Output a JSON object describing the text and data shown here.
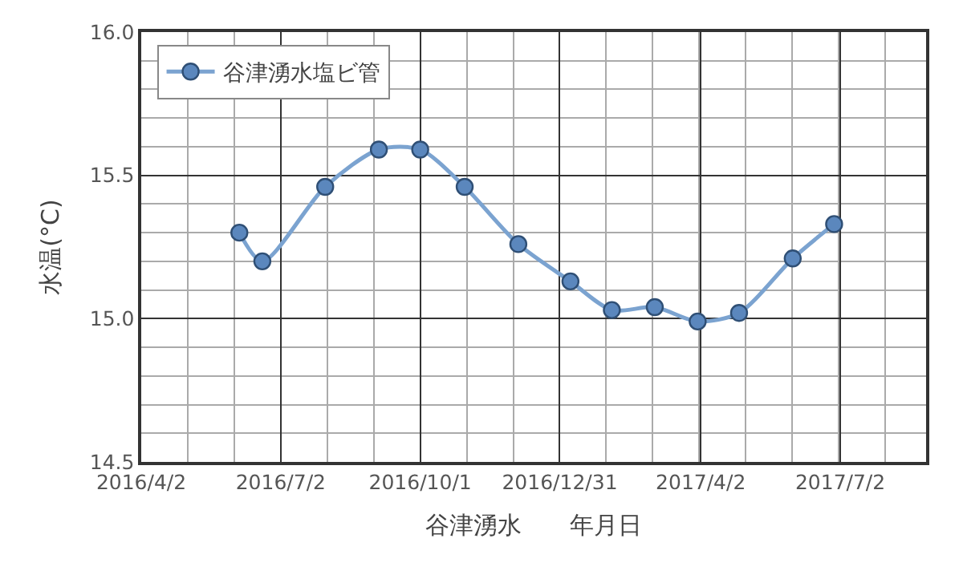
{
  "chart_data": {
    "type": "line",
    "ylabel": "水温(°C)",
    "xlabel": "谷津湧水　　年月日",
    "x": [
      "2016-06-05",
      "2016-06-20",
      "2016-07-31",
      "2016-09-04",
      "2016-10-01",
      "2016-10-30",
      "2016-12-04",
      "2017-01-07",
      "2017-02-03",
      "2017-03-03",
      "2017-03-31",
      "2017-04-27",
      "2017-06-01",
      "2017-06-28"
    ],
    "series": [
      {
        "name": "谷津湧水塩ビ管",
        "color": "#5b87bd",
        "values": [
          15.3,
          15.2,
          15.46,
          15.59,
          15.59,
          15.46,
          15.26,
          15.13,
          15.03,
          15.04,
          14.99,
          15.02,
          15.21,
          15.33
        ]
      }
    ],
    "xlim": [
      "2016-04-02",
      "2017-08-27"
    ],
    "xticks": [
      {
        "value": "2016-04-02",
        "label": "2016/4/2"
      },
      {
        "value": "2016-07-02",
        "label": "2016/7/2"
      },
      {
        "value": "2016-10-01",
        "label": "2016/10/1"
      },
      {
        "value": "2016-12-31",
        "label": "2016/12/31"
      },
      {
        "value": "2017-04-02",
        "label": "2017/4/2"
      },
      {
        "value": "2017-07-02",
        "label": "2017/7/2"
      }
    ],
    "ylim": [
      14.5,
      16.0
    ],
    "yticks": [
      14.5,
      {
        "value": 15,
        "label": "15.0"
      },
      15.5,
      {
        "value": 16,
        "label": "16.0"
      }
    ],
    "grid": true,
    "legend": "top left",
    "marker": "circle",
    "line_style": "solid"
  }
}
